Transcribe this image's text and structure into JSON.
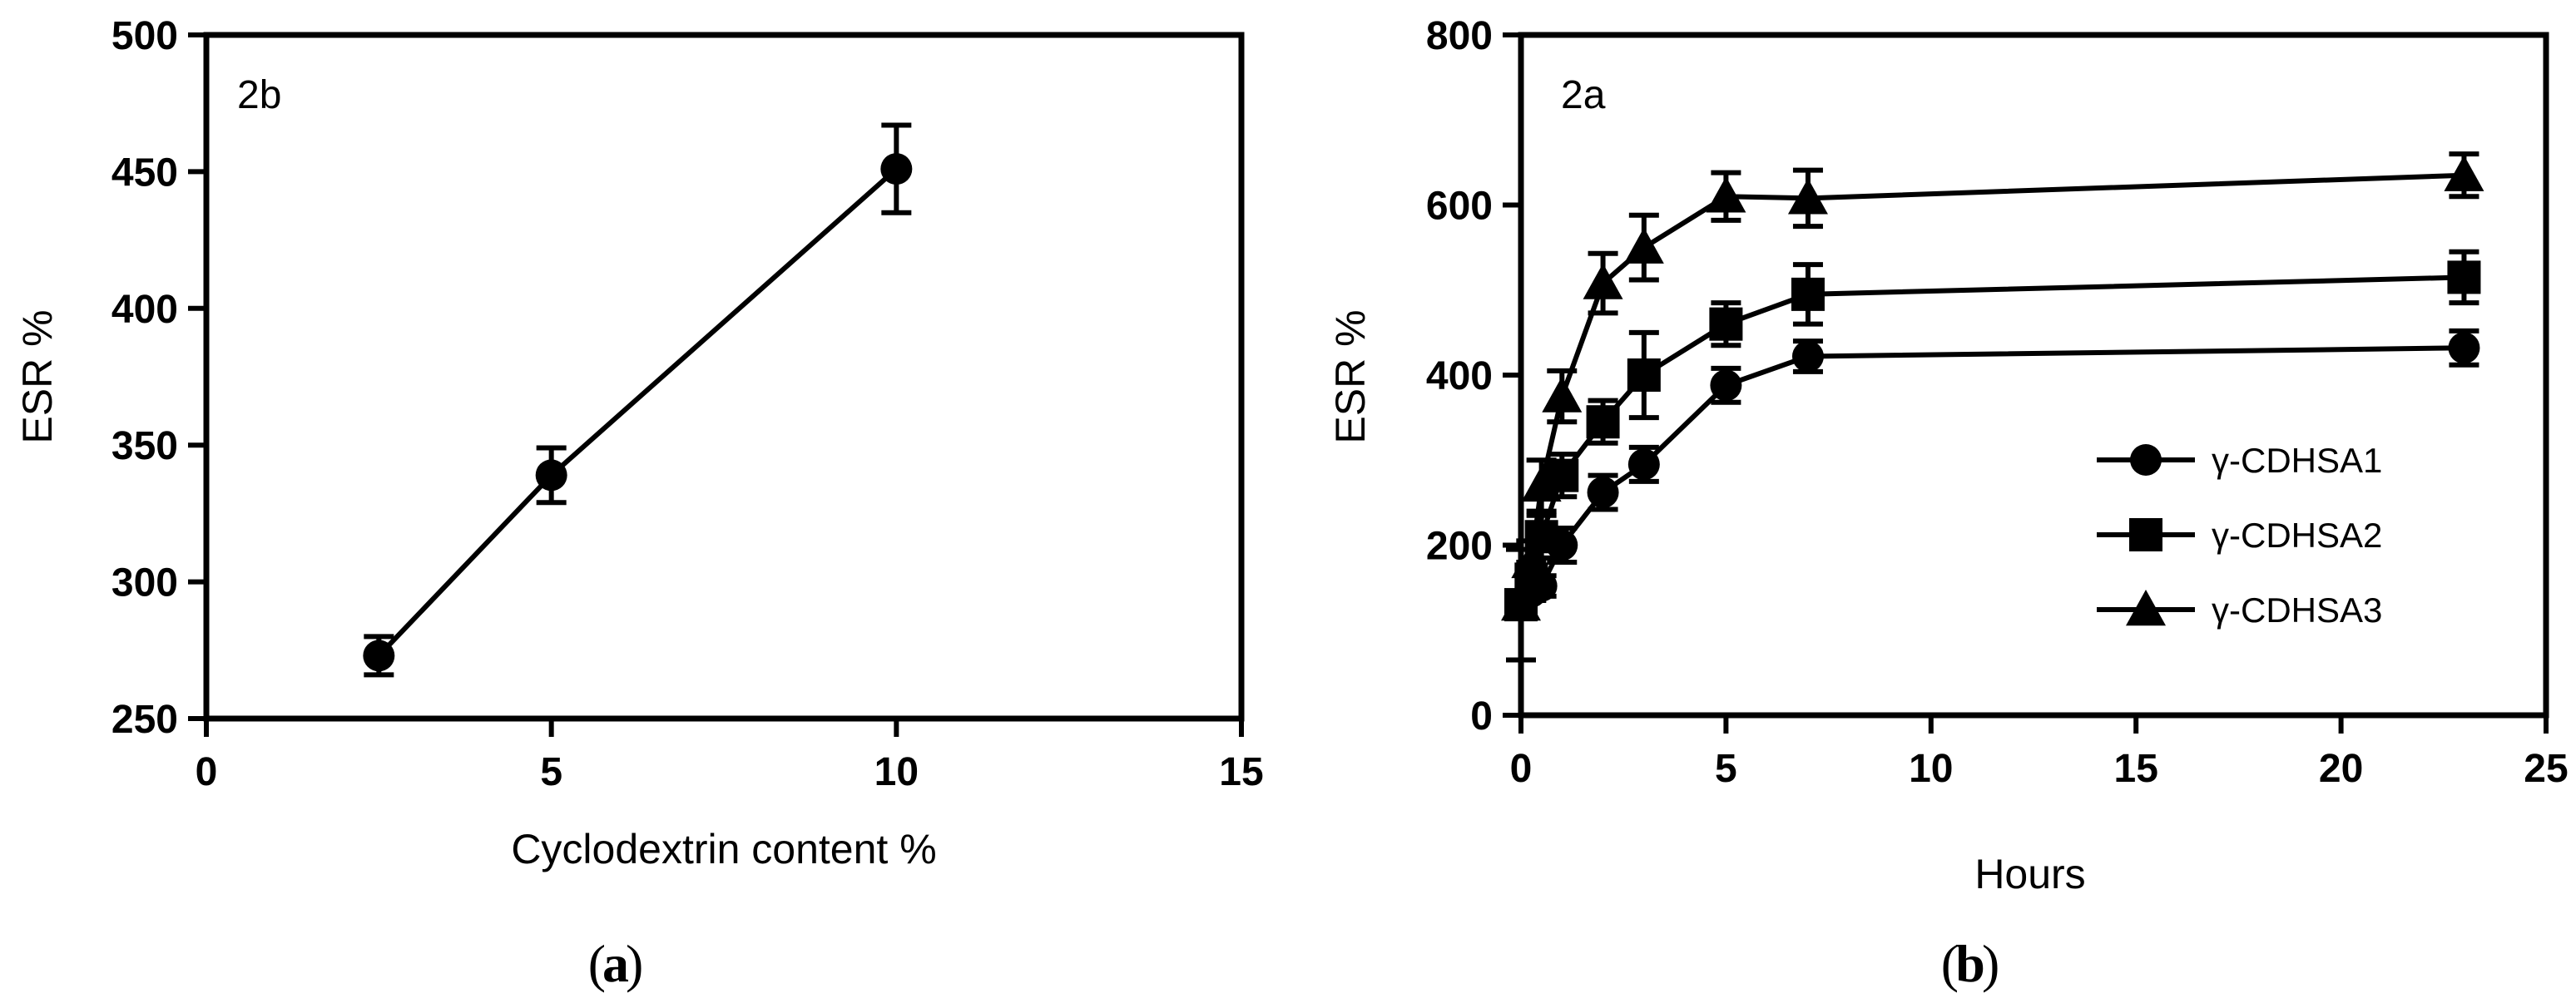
{
  "chart_data": [
    {
      "type": "line",
      "panel_label": "2b",
      "caption": "a",
      "xlabel": "Cyclodextrin content %",
      "ylabel": "ESR %",
      "xlim": [
        0,
        15
      ],
      "ylim": [
        250,
        500
      ],
      "xticks": [
        0,
        5,
        10,
        15
      ],
      "yticks": [
        250,
        300,
        350,
        400,
        450,
        500
      ],
      "grid": false,
      "series": [
        {
          "marker": "circle",
          "x": [
            2.5,
            5,
            10
          ],
          "y": [
            273,
            339,
            451
          ],
          "err": [
            7,
            10,
            16
          ]
        }
      ]
    },
    {
      "type": "line",
      "panel_label": "2a",
      "caption": "b",
      "xlabel": "Hours",
      "ylabel": "ESR %",
      "xlim": [
        0,
        25
      ],
      "ylim": [
        0,
        800
      ],
      "xticks": [
        0,
        5,
        10,
        15,
        20,
        25
      ],
      "yticks": [
        0,
        200,
        400,
        600,
        800
      ],
      "grid": false,
      "legend_position": "right",
      "series": [
        {
          "name": "γ-CDHSA1",
          "marker": "circle",
          "x": [
            0,
            0.25,
            0.5,
            1,
            2,
            3,
            5,
            7,
            23
          ],
          "y": [
            130,
            145,
            152,
            200,
            262,
            295,
            388,
            422,
            432
          ],
          "err": [
            0,
            10,
            12,
            20,
            20,
            20,
            20,
            18,
            20
          ]
        },
        {
          "name": "γ-CDHSA2",
          "marker": "square",
          "x": [
            0,
            0.25,
            0.5,
            1,
            2,
            3,
            5,
            7,
            23
          ],
          "y": [
            130,
            160,
            210,
            282,
            345,
            400,
            460,
            495,
            515
          ],
          "err": [
            65,
            20,
            25,
            25,
            25,
            50,
            25,
            35,
            30
          ]
        },
        {
          "name": "γ-CDHSA3",
          "marker": "triangle",
          "x": [
            0,
            0.25,
            0.5,
            1,
            2,
            3,
            5,
            7,
            23
          ],
          "y": [
            130,
            180,
            270,
            375,
            508,
            550,
            610,
            608,
            635
          ],
          "err": [
            0,
            25,
            30,
            30,
            35,
            38,
            28,
            33,
            25
          ]
        }
      ]
    }
  ]
}
